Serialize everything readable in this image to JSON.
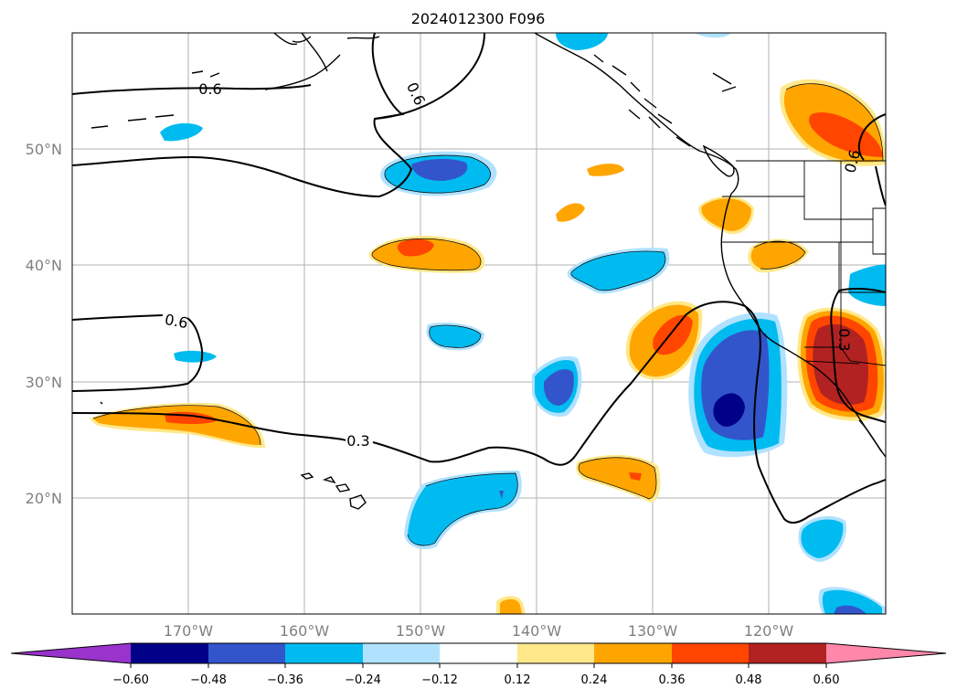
{
  "title": "2024012300 F096",
  "map": {
    "lat_labels": [
      "50°N",
      "40°N",
      "30°N",
      "20°N"
    ],
    "lon_labels": [
      "170°W",
      "160°W",
      "150°W",
      "140°W",
      "130°W",
      "120°W"
    ],
    "contour_labels": [
      "0.6",
      "0.6",
      "0.6",
      "0.3",
      "0.3",
      "0.6"
    ],
    "grid": true
  },
  "colorbar": {
    "ticks": [
      "−0.60",
      "−0.48",
      "−0.36",
      "−0.24",
      "−0.12",
      "0.12",
      "0.24",
      "0.36",
      "0.48",
      "0.60"
    ],
    "colors": [
      "#9933cc",
      "#000088",
      "#3355cc",
      "#00bbf0",
      "#b0e2ff",
      "#ffffff",
      "#ffe88a",
      "#ffa500",
      "#ff4500",
      "#b22222",
      "#ff88aa"
    ],
    "extend": "both"
  }
}
